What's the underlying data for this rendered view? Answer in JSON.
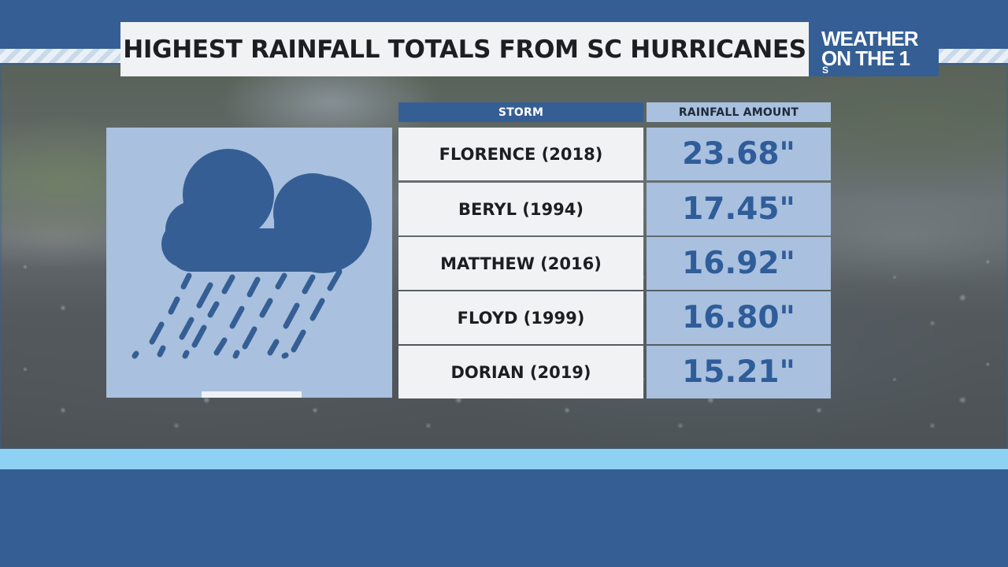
{
  "title": "HIGHEST RAINFALL TOTALS FROM SC HURRICANES",
  "brand": {
    "line1": "WEATHER",
    "line2": "ON THE 1",
    "suffix": "S"
  },
  "icon": "cloud-rain-icon",
  "colors": {
    "accent_blue": "#355f94",
    "light_blue": "#a9c0df",
    "sky_band": "#8fd1f2",
    "value_text": "#2f5d99"
  },
  "table": {
    "headers": {
      "storm": "STORM",
      "rainfall": "RAINFALL AMOUNT"
    },
    "rows": [
      {
        "storm": "FLORENCE (2018)",
        "rainfall": "23.68\""
      },
      {
        "storm": "BERYL (1994)",
        "rainfall": "17.45\""
      },
      {
        "storm": "MATTHEW (2016)",
        "rainfall": "16.92\""
      },
      {
        "storm": "FLOYD (1999)",
        "rainfall": "16.80\""
      },
      {
        "storm": "DORIAN (2019)",
        "rainfall": "15.21\""
      }
    ]
  }
}
